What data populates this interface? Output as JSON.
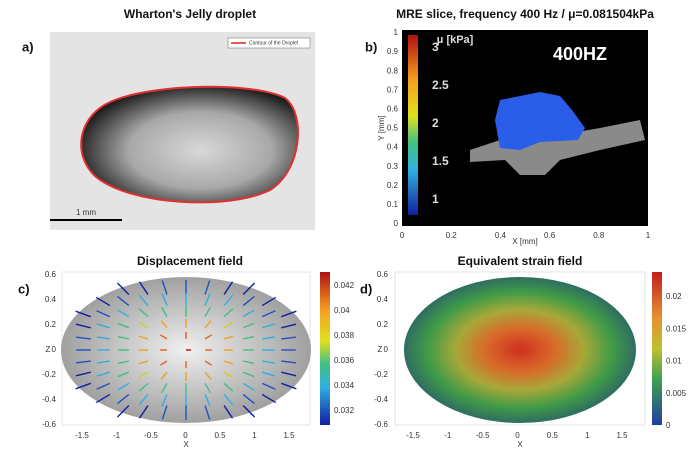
{
  "panels": [
    {
      "label": "a)",
      "title": "Wharton's Jelly droplet",
      "legend": "Contour of the Droplet",
      "scale_bar": "1 mm"
    },
    {
      "label": "b)",
      "title": "MRE slice, frequency 400 Hz / μ=0.081504kPa",
      "annotation": "400HZ",
      "colorbar_title": "μ [kPa]",
      "colorbar_ticks": [
        "3",
        "2.5",
        "2",
        "1.5",
        "1"
      ],
      "x_label": "X [mm]",
      "y_label": "Y [mm]",
      "x_ticks": [
        "0",
        "0.2",
        "0.4",
        "0.6",
        "0.8",
        "1"
      ],
      "y_ticks": [
        "1",
        "0.9",
        "0.8",
        "0.7",
        "0.6",
        "0.5",
        "0.4",
        "0.3",
        "0.2",
        "0.1",
        "0"
      ]
    },
    {
      "label": "c)",
      "title": "Displacement field",
      "x_label": "X",
      "y_label": "Z",
      "x_ticks": [
        "-1.5",
        "-1",
        "-0.5",
        "0",
        "0.5",
        "1",
        "1.5"
      ],
      "y_ticks": [
        "0.6",
        "0.4",
        "0.2",
        "0",
        "-0.2",
        "-0.4",
        "-0.6"
      ],
      "colorbar_ticks": [
        "0.042",
        "0.04",
        "0.038",
        "0.036",
        "0.034",
        "0.032"
      ]
    },
    {
      "label": "d)",
      "title": "Equivalent strain field",
      "x_label": "X",
      "y_label": "Z",
      "x_ticks": [
        "-1.5",
        "-1",
        "-0.5",
        "0",
        "0.5",
        "1",
        "1.5"
      ],
      "y_ticks": [
        "0.6",
        "0.4",
        "0.2",
        "0",
        "-0.2",
        "-0.4",
        "-0.6"
      ],
      "colorbar_ticks": [
        "0.02",
        "0.015",
        "0.01",
        "0.005",
        "0"
      ]
    }
  ]
}
